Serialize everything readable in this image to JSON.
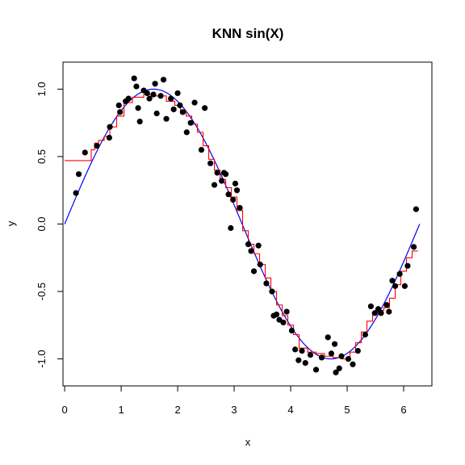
{
  "chart_data": {
    "type": "scatter",
    "title": "KNN sin(X)",
    "xlabel": "x",
    "ylabel": "y",
    "xlim": [
      -0.03,
      6.5
    ],
    "ylim": [
      -1.2,
      1.2
    ],
    "x_ticks": [
      0,
      1,
      2,
      3,
      4,
      5,
      6
    ],
    "y_ticks": [
      -1.0,
      -0.5,
      0.0,
      0.5,
      1.0
    ],
    "y_tick_labels": [
      "-1.0",
      "-0.5",
      "0.0",
      "0.5",
      "1.0"
    ],
    "grid": false,
    "legend": "none",
    "colors": {
      "points": "#000000",
      "knn": "#ff0000",
      "true_curve": "#0000ff"
    },
    "points": {
      "x": [
        0.2,
        0.25,
        0.36,
        0.57,
        0.79,
        0.8,
        0.96,
        0.98,
        1.08,
        1.13,
        1.23,
        1.27,
        1.3,
        1.33,
        1.4,
        1.46,
        1.5,
        1.57,
        1.6,
        1.63,
        1.7,
        1.75,
        1.8,
        1.88,
        1.93,
        2.0,
        2.04,
        2.09,
        2.16,
        2.23,
        2.3,
        2.42,
        2.48,
        2.58,
        2.65,
        2.7,
        2.78,
        2.82,
        2.85,
        2.9,
        2.94,
        2.98,
        3.02,
        3.05,
        3.1,
        3.25,
        3.3,
        3.35,
        3.43,
        3.46,
        3.57,
        3.67,
        3.7,
        3.75,
        3.8,
        3.87,
        3.93,
        4.02,
        4.08,
        4.14,
        4.2,
        4.26,
        4.35,
        4.45,
        4.55,
        4.66,
        4.72,
        4.78,
        4.8,
        4.86,
        4.9,
        5.02,
        5.1,
        5.19,
        5.32,
        5.42,
        5.49,
        5.55,
        5.6,
        5.7,
        5.74,
        5.8,
        5.85,
        5.93,
        6.02,
        6.07,
        6.18,
        6.22
      ],
      "y": [
        0.23,
        0.37,
        0.53,
        0.58,
        0.64,
        0.72,
        0.88,
        0.83,
        0.91,
        0.93,
        1.08,
        1.02,
        0.86,
        0.76,
        0.99,
        0.97,
        0.93,
        0.96,
        1.04,
        0.82,
        0.95,
        1.07,
        0.78,
        0.93,
        0.85,
        0.97,
        0.88,
        0.83,
        0.68,
        0.75,
        0.9,
        0.55,
        0.86,
        0.45,
        0.29,
        0.38,
        0.32,
        0.38,
        0.37,
        0.22,
        -0.03,
        0.18,
        0.3,
        0.25,
        0.12,
        -0.15,
        -0.2,
        -0.35,
        -0.16,
        -0.3,
        -0.44,
        -0.5,
        -0.68,
        -0.67,
        -0.71,
        -0.73,
        -0.65,
        -0.79,
        -0.93,
        -1.01,
        -0.94,
        -1.03,
        -0.97,
        -1.08,
        -0.99,
        -0.84,
        -0.96,
        -0.89,
        -1.1,
        -1.07,
        -0.98,
        -1.0,
        -1.04,
        -0.94,
        -0.82,
        -0.61,
        -0.66,
        -0.63,
        -0.66,
        -0.6,
        -0.65,
        -0.42,
        -0.46,
        -0.37,
        -0.46,
        -0.31,
        -0.17,
        0.11
      ]
    },
    "knn_step": {
      "x": [
        0.0,
        0.47,
        0.53,
        0.6,
        0.7,
        0.8,
        0.92,
        1.05,
        1.2,
        1.4,
        1.6,
        1.8,
        1.95,
        2.05,
        2.15,
        2.25,
        2.35,
        2.45,
        2.55,
        2.65,
        2.75,
        2.85,
        2.95,
        3.05,
        3.15,
        3.25,
        3.35,
        3.45,
        3.55,
        3.65,
        3.75,
        3.85,
        3.95,
        4.05,
        4.15,
        4.3,
        4.45,
        4.6,
        4.75,
        4.9,
        5.05,
        5.15,
        5.25,
        5.35,
        5.45,
        5.55,
        5.65,
        5.75,
        5.85,
        5.95,
        6.05,
        6.15,
        6.25
      ],
      "y": [
        0.47,
        0.55,
        0.6,
        0.62,
        0.65,
        0.72,
        0.8,
        0.9,
        0.94,
        0.96,
        0.95,
        0.91,
        0.88,
        0.84,
        0.8,
        0.74,
        0.68,
        0.58,
        0.48,
        0.4,
        0.33,
        0.27,
        0.2,
        0.1,
        -0.05,
        -0.15,
        -0.22,
        -0.3,
        -0.4,
        -0.5,
        -0.6,
        -0.68,
        -0.75,
        -0.82,
        -0.92,
        -0.95,
        -0.96,
        -0.98,
        -0.99,
        -1.0,
        -0.95,
        -0.88,
        -0.8,
        -0.72,
        -0.66,
        -0.64,
        -0.62,
        -0.55,
        -0.45,
        -0.35,
        -0.25,
        -0.2,
        -0.2
      ]
    },
    "true_curve": {
      "function": "sin(x)",
      "x_range": [
        0,
        6.283
      ]
    }
  }
}
